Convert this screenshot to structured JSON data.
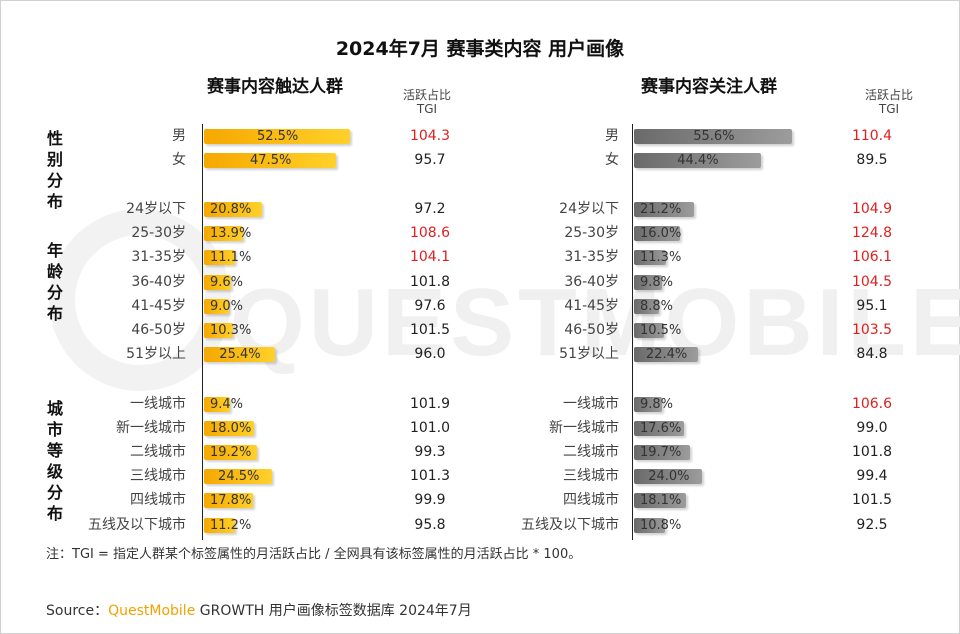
{
  "title": "2024年7月 赛事类内容 用户画像",
  "watermark": "QUESTMOBILE",
  "tgi_header": [
    "活跃占比",
    "TGI"
  ],
  "group_labels": [
    "性别分布",
    "年龄分布",
    "城市等级分布"
  ],
  "colors": {
    "left_bar": "#f5a800",
    "right_bar": "#7a7a7a",
    "highlight": "#e02020",
    "brand": "#f5a000"
  },
  "note": "注：TGI = 指定人群某个标签属性的月活跃占比 / 全网具有该标签属性的月活跃占比 * 100。",
  "source": {
    "prefix": "Source：",
    "brand": "QuestMobile",
    "rest": " GROWTH 用户画像标签数据库 2024年7月"
  },
  "chart_data": [
    {
      "type": "bar",
      "title": "赛事内容触达人群",
      "categories": [
        "男",
        "女",
        "24岁以下",
        "25-30岁",
        "31-35岁",
        "36-40岁",
        "41-45岁",
        "46-50岁",
        "51岁以上",
        "一线城市",
        "新一线城市",
        "二线城市",
        "三线城市",
        "四线城市",
        "五线及以下城市"
      ],
      "series": [
        {
          "name": "活跃占比",
          "values": [
            52.5,
            47.5,
            20.8,
            13.9,
            11.1,
            9.6,
            9.0,
            10.3,
            25.4,
            9.4,
            18.0,
            19.2,
            24.5,
            17.8,
            11.2
          ],
          "labels": [
            "52.5%",
            "47.5%",
            "20.8%",
            "13.9%",
            "11.1%",
            "9.6%",
            "9.0%",
            "10.3%",
            "25.4%",
            "9.4%",
            "18.0%",
            "19.2%",
            "24.5%",
            "17.8%",
            "11.2%"
          ]
        },
        {
          "name": "TGI",
          "values": [
            104.3,
            95.7,
            97.2,
            108.6,
            104.1,
            101.8,
            97.6,
            101.5,
            96.0,
            101.9,
            101.0,
            99.3,
            101.3,
            99.9,
            95.8
          ],
          "labels": [
            "104.3",
            "95.7",
            "97.2",
            "108.6",
            "104.1",
            "101.8",
            "97.6",
            "101.5",
            "96.0",
            "101.9",
            "101.0",
            "99.3",
            "101.3",
            "99.9",
            "95.8"
          ]
        }
      ]
    },
    {
      "type": "bar",
      "title": "赛事内容关注人群",
      "categories": [
        "男",
        "女",
        "24岁以下",
        "25-30岁",
        "31-35岁",
        "36-40岁",
        "41-45岁",
        "46-50岁",
        "51岁以上",
        "一线城市",
        "新一线城市",
        "二线城市",
        "三线城市",
        "四线城市",
        "五线及以下城市"
      ],
      "series": [
        {
          "name": "活跃占比",
          "values": [
            55.6,
            44.4,
            21.2,
            16.0,
            11.3,
            9.8,
            8.8,
            10.5,
            22.4,
            9.8,
            17.6,
            19.7,
            24.0,
            18.1,
            10.8
          ],
          "labels": [
            "55.6%",
            "44.4%",
            "21.2%",
            "16.0%",
            "11.3%",
            "9.8%",
            "8.8%",
            "10.5%",
            "22.4%",
            "9.8%",
            "17.6%",
            "19.7%",
            "24.0%",
            "18.1%",
            "10.8%"
          ]
        },
        {
          "name": "TGI",
          "values": [
            110.4,
            89.5,
            104.9,
            124.8,
            106.1,
            104.5,
            95.1,
            103.5,
            84.8,
            106.6,
            99.0,
            101.8,
            99.4,
            101.5,
            92.5
          ],
          "labels": [
            "110.4",
            "89.5",
            "104.9",
            "124.8",
            "106.1",
            "104.5",
            "95.1",
            "103.5",
            "84.8",
            "106.6",
            "99.0",
            "101.8",
            "99.4",
            "101.5",
            "92.5"
          ]
        }
      ]
    }
  ]
}
